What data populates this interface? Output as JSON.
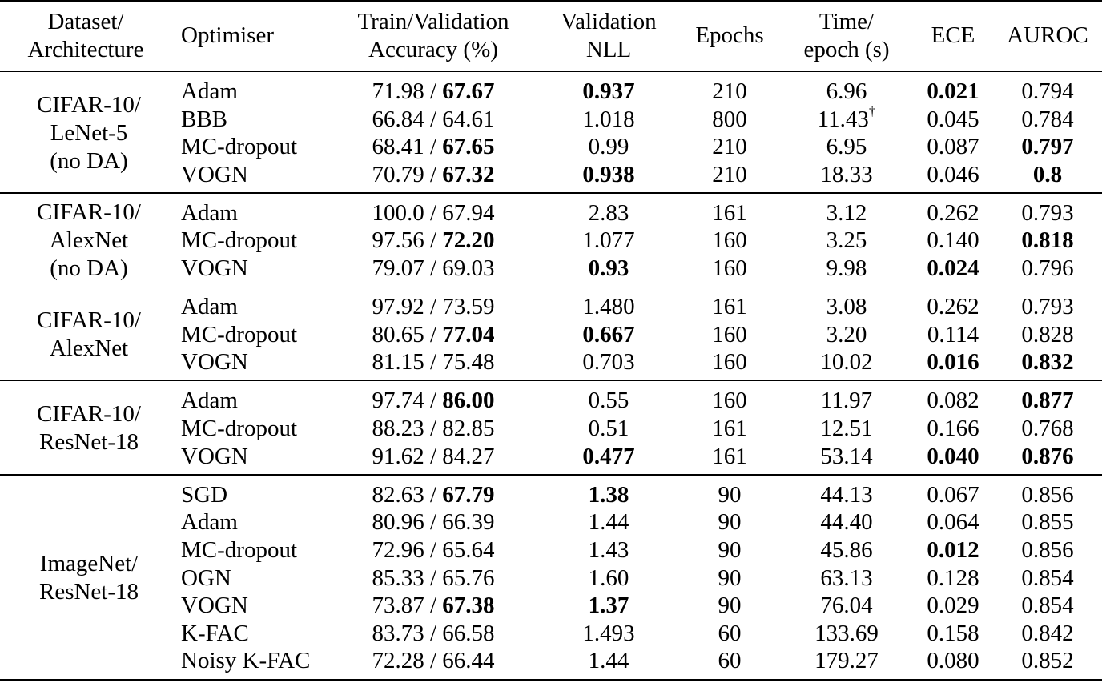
{
  "headers": {
    "dataset": [
      "Dataset/",
      "Architecture"
    ],
    "optimiser": "Optimiser",
    "accuracy": [
      "Train/Validation",
      "Accuracy (%)"
    ],
    "nll": [
      "Validation",
      "NLL"
    ],
    "epochs": "Epochs",
    "time": [
      "Time/",
      "epoch (s)"
    ],
    "ece": "ECE",
    "auroc": "AUROC"
  },
  "groups": [
    {
      "dataset": [
        "CIFAR-10/",
        "LeNet-5",
        "(no DA)"
      ],
      "rows": [
        {
          "opt": "Adam",
          "train": "71.98",
          "val": "67.67",
          "val_bold": true,
          "nll": "0.937",
          "nll_bold": true,
          "epochs": "210",
          "time": "6.96",
          "time_sup": "",
          "ece": "0.021",
          "ece_bold": true,
          "auroc": "0.794",
          "auroc_bold": false
        },
        {
          "opt": "BBB",
          "train": "66.84",
          "val": "64.61",
          "val_bold": false,
          "nll": "1.018",
          "nll_bold": false,
          "epochs": "800",
          "time": "11.43",
          "time_sup": "†",
          "ece": "0.045",
          "ece_bold": false,
          "auroc": "0.784",
          "auroc_bold": false
        },
        {
          "opt": "MC-dropout",
          "train": "68.41",
          "val": "67.65",
          "val_bold": true,
          "nll": "0.99",
          "nll_bold": false,
          "epochs": "210",
          "time": "6.95",
          "time_sup": "",
          "ece": "0.087",
          "ece_bold": false,
          "auroc": "0.797",
          "auroc_bold": true
        },
        {
          "opt": "VOGN",
          "train": "70.79",
          "val": "67.32",
          "val_bold": true,
          "nll": "0.938",
          "nll_bold": true,
          "epochs": "210",
          "time": "18.33",
          "time_sup": "",
          "ece": "0.046",
          "ece_bold": false,
          "auroc": "0.8",
          "auroc_bold": true
        }
      ]
    },
    {
      "dataset": [
        "CIFAR-10/",
        "AlexNet",
        "(no DA)"
      ],
      "rows": [
        {
          "opt": "Adam",
          "train": "100.0",
          "val": "67.94",
          "val_bold": false,
          "nll": "2.83",
          "nll_bold": false,
          "epochs": "161",
          "time": "3.12",
          "time_sup": "",
          "ece": "0.262",
          "ece_bold": false,
          "auroc": "0.793",
          "auroc_bold": false
        },
        {
          "opt": "MC-dropout",
          "train": "97.56",
          "val": "72.20",
          "val_bold": true,
          "nll": "1.077",
          "nll_bold": false,
          "epochs": "160",
          "time": "3.25",
          "time_sup": "",
          "ece": "0.140",
          "ece_bold": false,
          "auroc": "0.818",
          "auroc_bold": true
        },
        {
          "opt": "VOGN",
          "train": "79.07",
          "val": "69.03",
          "val_bold": false,
          "nll": "0.93",
          "nll_bold": true,
          "epochs": "160",
          "time": "9.98",
          "time_sup": "",
          "ece": "0.024",
          "ece_bold": true,
          "auroc": "0.796",
          "auroc_bold": false
        }
      ]
    },
    {
      "dataset": [
        "CIFAR-10/",
        "AlexNet"
      ],
      "rows": [
        {
          "opt": "Adam",
          "train": "97.92",
          "val": "73.59",
          "val_bold": false,
          "nll": "1.480",
          "nll_bold": false,
          "epochs": "161",
          "time": "3.08",
          "time_sup": "",
          "ece": "0.262",
          "ece_bold": false,
          "auroc": "0.793",
          "auroc_bold": false
        },
        {
          "opt": "MC-dropout",
          "train": "80.65",
          "val": "77.04",
          "val_bold": true,
          "nll": "0.667",
          "nll_bold": true,
          "epochs": "160",
          "time": "3.20",
          "time_sup": "",
          "ece": "0.114",
          "ece_bold": false,
          "auroc": "0.828",
          "auroc_bold": false
        },
        {
          "opt": "VOGN",
          "train": "81.15",
          "val": "75.48",
          "val_bold": false,
          "nll": "0.703",
          "nll_bold": false,
          "epochs": "160",
          "time": "10.02",
          "time_sup": "",
          "ece": "0.016",
          "ece_bold": true,
          "auroc": "0.832",
          "auroc_bold": true
        }
      ]
    },
    {
      "dataset": [
        "CIFAR-10/",
        "ResNet-18"
      ],
      "rows": [
        {
          "opt": "Adam",
          "train": "97.74",
          "val": "86.00",
          "val_bold": true,
          "nll": "0.55",
          "nll_bold": false,
          "epochs": "160",
          "time": "11.97",
          "time_sup": "",
          "ece": "0.082",
          "ece_bold": false,
          "auroc": "0.877",
          "auroc_bold": true
        },
        {
          "opt": "MC-dropout",
          "train": "88.23",
          "val": "82.85",
          "val_bold": false,
          "nll": "0.51",
          "nll_bold": false,
          "epochs": "161",
          "time": "12.51",
          "time_sup": "",
          "ece": "0.166",
          "ece_bold": false,
          "auroc": "0.768",
          "auroc_bold": false
        },
        {
          "opt": "VOGN",
          "train": "91.62",
          "val": "84.27",
          "val_bold": false,
          "nll": "0.477",
          "nll_bold": true,
          "epochs": "161",
          "time": "53.14",
          "time_sup": "",
          "ece": "0.040",
          "ece_bold": true,
          "auroc": "0.876",
          "auroc_bold": true
        }
      ]
    },
    {
      "dataset": [
        "ImageNet/",
        "ResNet-18"
      ],
      "rows": [
        {
          "opt": "SGD",
          "train": "82.63",
          "val": "67.79",
          "val_bold": true,
          "nll": "1.38",
          "nll_bold": true,
          "epochs": "90",
          "time": "44.13",
          "time_sup": "",
          "ece": "0.067",
          "ece_bold": false,
          "auroc": "0.856",
          "auroc_bold": false
        },
        {
          "opt": "Adam",
          "train": "80.96",
          "val": "66.39",
          "val_bold": false,
          "nll": "1.44",
          "nll_bold": false,
          "epochs": "90",
          "time": "44.40",
          "time_sup": "",
          "ece": "0.064",
          "ece_bold": false,
          "auroc": "0.855",
          "auroc_bold": false
        },
        {
          "opt": "MC-dropout",
          "train": "72.96",
          "val": "65.64",
          "val_bold": false,
          "nll": "1.43",
          "nll_bold": false,
          "epochs": "90",
          "time": "45.86",
          "time_sup": "",
          "ece": "0.012",
          "ece_bold": true,
          "auroc": "0.856",
          "auroc_bold": false
        },
        {
          "opt": "OGN",
          "train": "85.33",
          "val": "65.76",
          "val_bold": false,
          "nll": "1.60",
          "nll_bold": false,
          "epochs": "90",
          "time": "63.13",
          "time_sup": "",
          "ece": "0.128",
          "ece_bold": false,
          "auroc": "0.854",
          "auroc_bold": false
        },
        {
          "opt": "VOGN",
          "train": "73.87",
          "val": "67.38",
          "val_bold": true,
          "nll": "1.37",
          "nll_bold": true,
          "epochs": "90",
          "time": "76.04",
          "time_sup": "",
          "ece": "0.029",
          "ece_bold": false,
          "auroc": "0.854",
          "auroc_bold": false
        },
        {
          "opt": "K-FAC",
          "train": "83.73",
          "val": "66.58",
          "val_bold": false,
          "nll": "1.493",
          "nll_bold": false,
          "epochs": "60",
          "time": "133.69",
          "time_sup": "",
          "ece": "0.158",
          "ece_bold": false,
          "auroc": "0.842",
          "auroc_bold": false
        },
        {
          "opt": "Noisy K-FAC",
          "train": "72.28",
          "val": "66.44",
          "val_bold": false,
          "nll": "1.44",
          "nll_bold": false,
          "epochs": "60",
          "time": "179.27",
          "time_sup": "",
          "ece": "0.080",
          "ece_bold": false,
          "auroc": "0.852",
          "auroc_bold": false
        }
      ]
    }
  ]
}
